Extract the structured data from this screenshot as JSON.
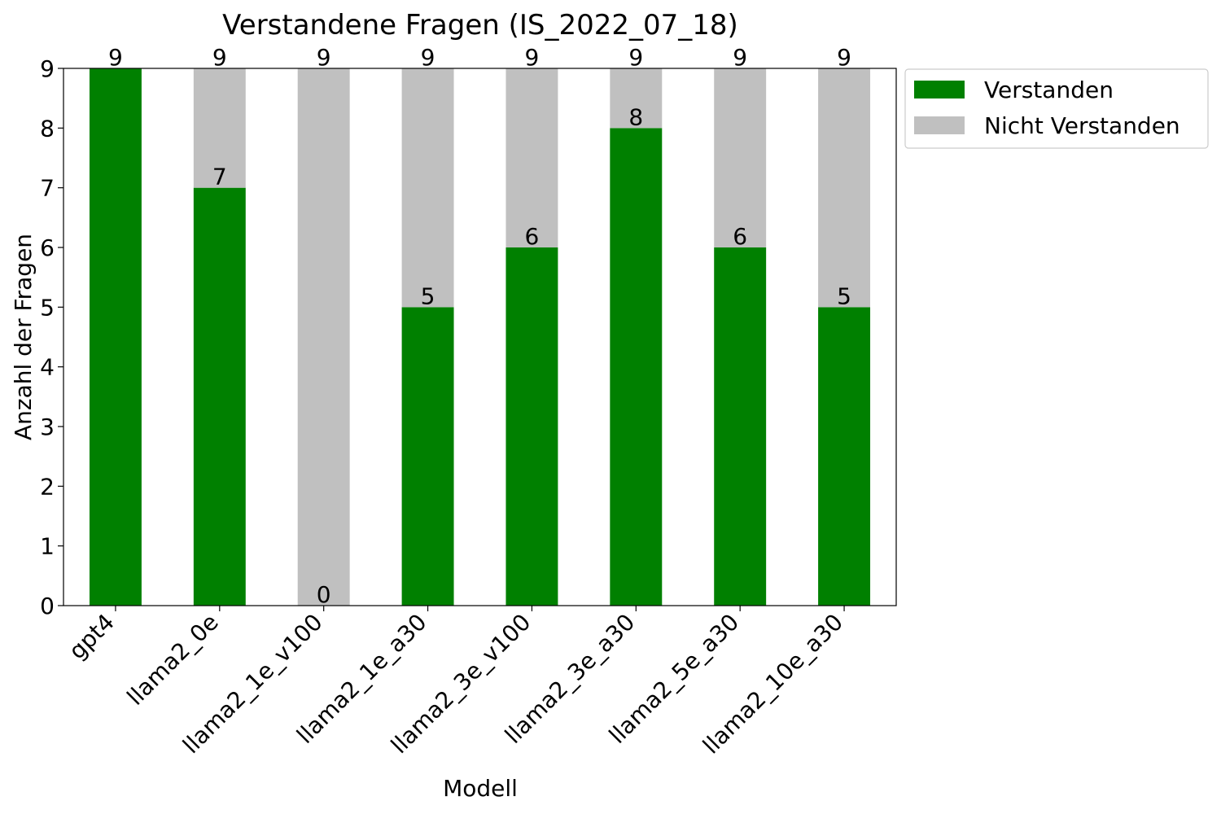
{
  "chart_data": {
    "type": "bar",
    "stacked": true,
    "title": "Verstandene Fragen (IS_2022_07_18)",
    "xlabel": "Modell",
    "ylabel": "Anzahl der Fragen",
    "ylim": [
      0,
      9
    ],
    "yticks": [
      "0",
      "1",
      "2",
      "3",
      "4",
      "5",
      "6",
      "7",
      "8",
      "9"
    ],
    "grid": false,
    "legend_position": "outside-top-right",
    "categories": [
      "gpt4",
      "llama2_0e",
      "llama2_1e_v100",
      "llama2_1e_a30",
      "llama2_3e_v100",
      "llama2_3e_a30",
      "llama2_5e_a30",
      "llama2_10e_a30"
    ],
    "series": [
      {
        "name": "Verstanden",
        "color": "#008000",
        "values": [
          9,
          7,
          0,
          5,
          6,
          8,
          6,
          5
        ]
      },
      {
        "name": "Nicht Verstanden",
        "color": "#c0c0c0",
        "values": [
          0,
          2,
          9,
          4,
          3,
          1,
          3,
          4
        ]
      }
    ],
    "data_labels": {
      "verstanden": [
        "",
        "7",
        "0",
        "5",
        "6",
        "8",
        "6",
        "5"
      ],
      "total": [
        "9",
        "9",
        "9",
        "9",
        "9",
        "9",
        "9",
        "9"
      ]
    }
  }
}
